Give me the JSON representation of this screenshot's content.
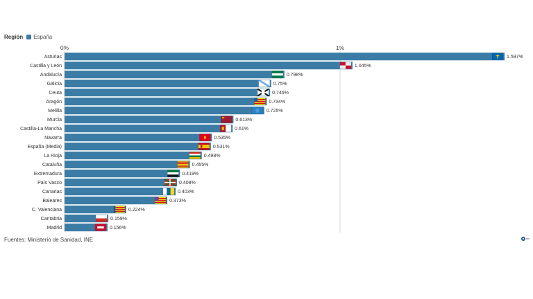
{
  "legend": {
    "title": "Región",
    "series_name": "España",
    "color": "#3a7ca5"
  },
  "footer": {
    "source": "Fuentes: Ministerio de Sanidad, INE"
  },
  "chart_data": {
    "type": "bar",
    "orientation": "horizontal",
    "x_ticks": [
      "0%",
      "1%"
    ],
    "xlim": [
      0,
      1.68
    ],
    "series": [
      {
        "name": "España",
        "color": "#3a7ca5",
        "categories": [
          "Asturias",
          "Castilla y León",
          "Andalucía",
          "Galicia",
          "Ceuta",
          "Aragón",
          "Melilla",
          "Murcia",
          "Castilla-La Mancha",
          "Navarra",
          "España (Media)",
          "La Rioja",
          "Cataluña",
          "Extremadura",
          "País Vasco",
          "Canarias",
          "Baleares",
          "C. Valenciana",
          "Cantabria",
          "Madrid"
        ],
        "values": [
          1.597,
          1.045,
          0.798,
          0.75,
          0.746,
          0.734,
          0.725,
          0.613,
          0.61,
          0.535,
          0.531,
          0.498,
          0.455,
          0.419,
          0.408,
          0.403,
          0.373,
          0.224,
          0.159,
          0.156
        ],
        "labels": [
          "1.597%",
          "1.045%",
          "0.798%",
          "0.75%",
          "0.746%",
          "0.734%",
          "0.725%",
          "0.613%",
          "0.61%",
          "0.535%",
          "0.531%",
          "0.498%",
          "0.455%",
          "0.419%",
          "0.408%",
          "0.403%",
          "0.373%",
          "0.224%",
          "0.159%",
          "0.156%"
        ],
        "flag_icons": [
          "asturias-flag-icon",
          "castilla-y-leon-flag-icon",
          "andalucia-flag-icon",
          "galicia-flag-icon",
          "ceuta-flag-icon",
          "aragon-flag-icon",
          "melilla-flag-icon",
          "murcia-flag-icon",
          "castilla-la-mancha-flag-icon",
          "navarra-flag-icon",
          "espana-flag-icon",
          "la-rioja-flag-icon",
          "cataluna-flag-icon",
          "extremadura-flag-icon",
          "pais-vasco-flag-icon",
          "canarias-flag-icon",
          "baleares-flag-icon",
          "c-valenciana-flag-icon",
          "cantabria-flag-icon",
          "madrid-flag-icon"
        ]
      }
    ]
  }
}
